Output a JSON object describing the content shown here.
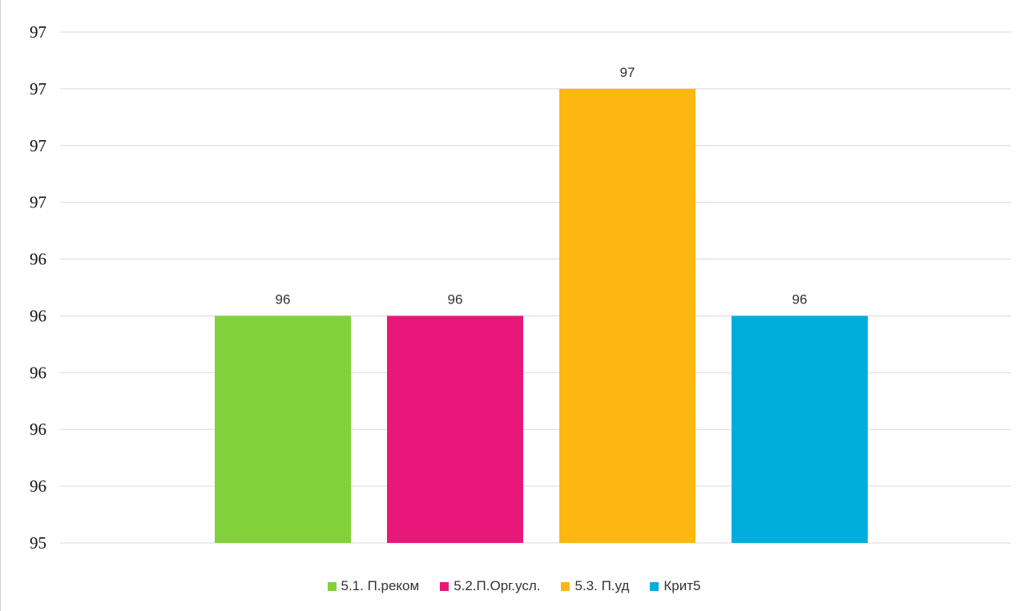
{
  "chart_data": {
    "type": "bar",
    "title": "",
    "xlabel": "",
    "ylabel": "",
    "y_tick_labels": [
      "95",
      "96",
      "96",
      "96",
      "96",
      "96",
      "97",
      "97",
      "97",
      "97"
    ],
    "ylim": [
      95.0,
      97.25
    ],
    "grid": true,
    "legend_position": "bottom",
    "series": [
      {
        "name": "5.1. П.реком",
        "value": 96.0,
        "label": "96",
        "color": "#82d13a"
      },
      {
        "name": "5.2.П.Орг.усл.",
        "value": 96.0,
        "label": "96",
        "color": "#e9177a"
      },
      {
        "name": "5.3. П.уд",
        "value": 97.0,
        "label": "97",
        "color": "#fdb711"
      },
      {
        "name": "Крит5",
        "value": 96.0,
        "label": "96",
        "color": "#00aedb"
      }
    ]
  }
}
